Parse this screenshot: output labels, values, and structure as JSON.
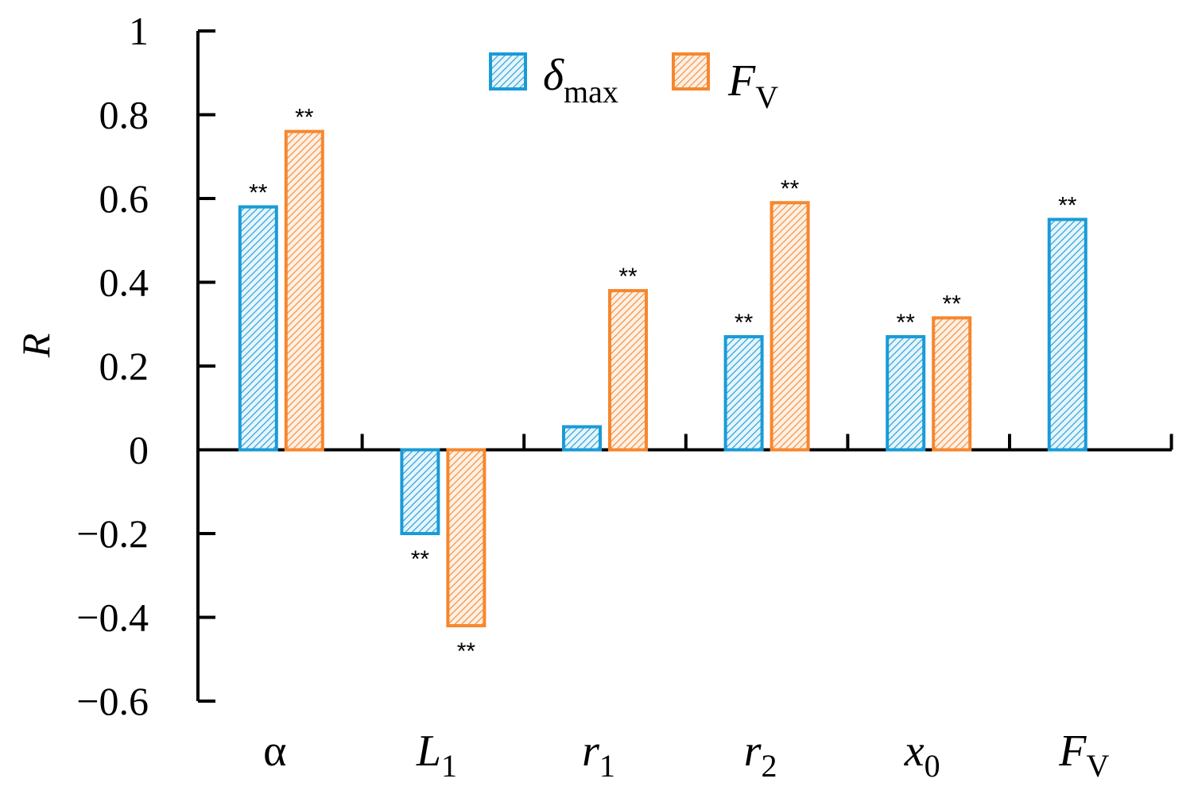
{
  "chart_data": {
    "type": "bar",
    "ylabel": "R",
    "xlabel": "",
    "ylim": [
      -0.6,
      1.0
    ],
    "yticks": [
      -0.6,
      -0.4,
      -0.2,
      0,
      0.2,
      0.4,
      0.6,
      0.8,
      1.0
    ],
    "ytick_labels": [
      "−0.6",
      "−0.4",
      "−0.2",
      "0",
      "0.2",
      "0.4",
      "0.6",
      "0.8",
      "1"
    ],
    "categories": [
      {
        "main": "α",
        "sub": "",
        "italic": false
      },
      {
        "main": "L",
        "sub": "1",
        "italic": true
      },
      {
        "main": "r",
        "sub": "1",
        "italic": true
      },
      {
        "main": "r",
        "sub": "2",
        "italic": true
      },
      {
        "main": "x",
        "sub": "0",
        "italic": true
      },
      {
        "main": "F",
        "sub": "V",
        "italic": true
      }
    ],
    "series": [
      {
        "name": "δmax",
        "name_main": "δ",
        "name_sub": "max",
        "color": "#1a9bd7",
        "values": [
          0.58,
          -0.2,
          0.055,
          0.27,
          0.27,
          0.55
        ],
        "significance": [
          "**",
          "**",
          "",
          "**",
          "**",
          "**"
        ]
      },
      {
        "name": "FV",
        "name_main": "F",
        "name_sub": "V",
        "color": "#f6872e",
        "values": [
          0.76,
          -0.42,
          0.38,
          0.59,
          0.315,
          null
        ],
        "significance": [
          "**",
          "**",
          "**",
          "**",
          "**",
          ""
        ]
      }
    ],
    "legend_position": "top-center",
    "grid": false
  }
}
